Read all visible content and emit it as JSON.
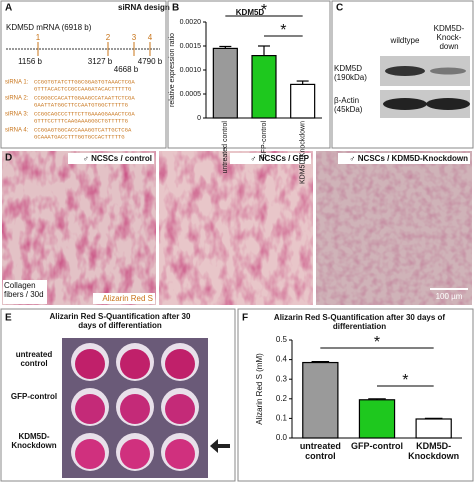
{
  "panel_a": {
    "label": "A",
    "title": "siRNA design",
    "mrna": "KDM5D mRNA (6918 b)",
    "sites": [
      {
        "number": "1",
        "position": "1156 b"
      },
      {
        "number": "2",
        "position": "3127 b"
      },
      {
        "number": "3",
        "position": "4668 b"
      },
      {
        "number": "4",
        "position": "4790 b"
      }
    ],
    "sirnas": [
      {
        "name": "siRNA 1:",
        "sense": "CCGGTGTATCTTGGCGGAGTGTAAACTCGA",
        "antisense": "GTTTACACTCCGCCAAGATACACTTTTTG"
      },
      {
        "name": "siRNA 2:",
        "sense": "CCGGGCCACATTGGAAGCCATAATTCTCGA",
        "antisense": "GAATTATGGCTTCCAATGTGGCTTTTTG"
      },
      {
        "name": "siRNA 3:",
        "sense": "CCGGCAGCCCTTTCTTGAAAGGAAACTCGA",
        "antisense": "GTTTCCTTTCAAGAAAGGGCTGTTTTTG"
      },
      {
        "name": "siRNA 4:",
        "sense": "CCGGAGTGGCACCAAAGGTCATTGCTCGA",
        "antisense": "GCAAATGACCTTTGGTGCCACTTTTTG"
      }
    ]
  },
  "chart_data": [
    {
      "type": "bar",
      "panel": "B",
      "title": "KDM5D",
      "y_label": "relative expression ratio",
      "categories": [
        "untreated control",
        "GFP-control",
        "KDM5D-Knockdown"
      ],
      "values": [
        0.00145,
        0.0013,
        0.0007
      ],
      "errors": [
        4e-05,
        0.0002,
        7e-05
      ],
      "colors": [
        "#9a9a9a",
        "#1ec81e",
        "#ffffff"
      ],
      "ylim": [
        0,
        0.002
      ],
      "yticks": [
        0,
        {
          "value": 0.0005,
          "label": "0.0005"
        },
        {
          "value": 0.001,
          "label": "0.0010"
        },
        {
          "value": 0.0015,
          "label": "0.0015"
        },
        {
          "value": 0.002,
          "label": "0.0020"
        }
      ],
      "annotations": [
        "*",
        "*"
      ]
    },
    {
      "type": "bar",
      "panel": "F",
      "title": "Alizarin Red S-Quantification after 30 days of differentiation",
      "y_label": "Alizarin Red S (mM)",
      "categories": [
        "untreated control",
        "GFP-control",
        "KDM5D-Knockdown"
      ],
      "values": [
        0.385,
        0.195,
        0.097
      ],
      "errors": [
        0.005,
        0.005,
        0.003
      ],
      "colors": [
        "#9a9a9a",
        "#1ec81e",
        "#ffffff"
      ],
      "ylim": [
        0,
        0.5
      ],
      "yticks": [
        {
          "value": 0,
          "label": "0.0"
        },
        0.1,
        0.2,
        0.3,
        0.4,
        0.5
      ],
      "annotations": [
        "*",
        "*"
      ]
    }
  ],
  "panel_c": {
    "label": "C",
    "columns": [
      "wildtype",
      "KDM5D-Knock-down"
    ],
    "rows": [
      "KDM5D (190kDa)",
      "β-Actin (45kDa)"
    ]
  },
  "panel_d": {
    "label": "D",
    "images": [
      "♂ NCSCs / control",
      "♂ NCSCs / GFP",
      "♂ NCSCs / KDM5D-Knockdown"
    ],
    "stain_left": "Collagen fibers / 30d",
    "stain_right": "Alizarin Red S",
    "scale_bar": "100 µm"
  },
  "panel_e": {
    "label": "E",
    "title": "Alizarin Red S-Quantification after 30 days of differentiation",
    "rows": [
      "untreated control",
      "GFP-control",
      "KDM5D-Knockdown"
    ]
  }
}
